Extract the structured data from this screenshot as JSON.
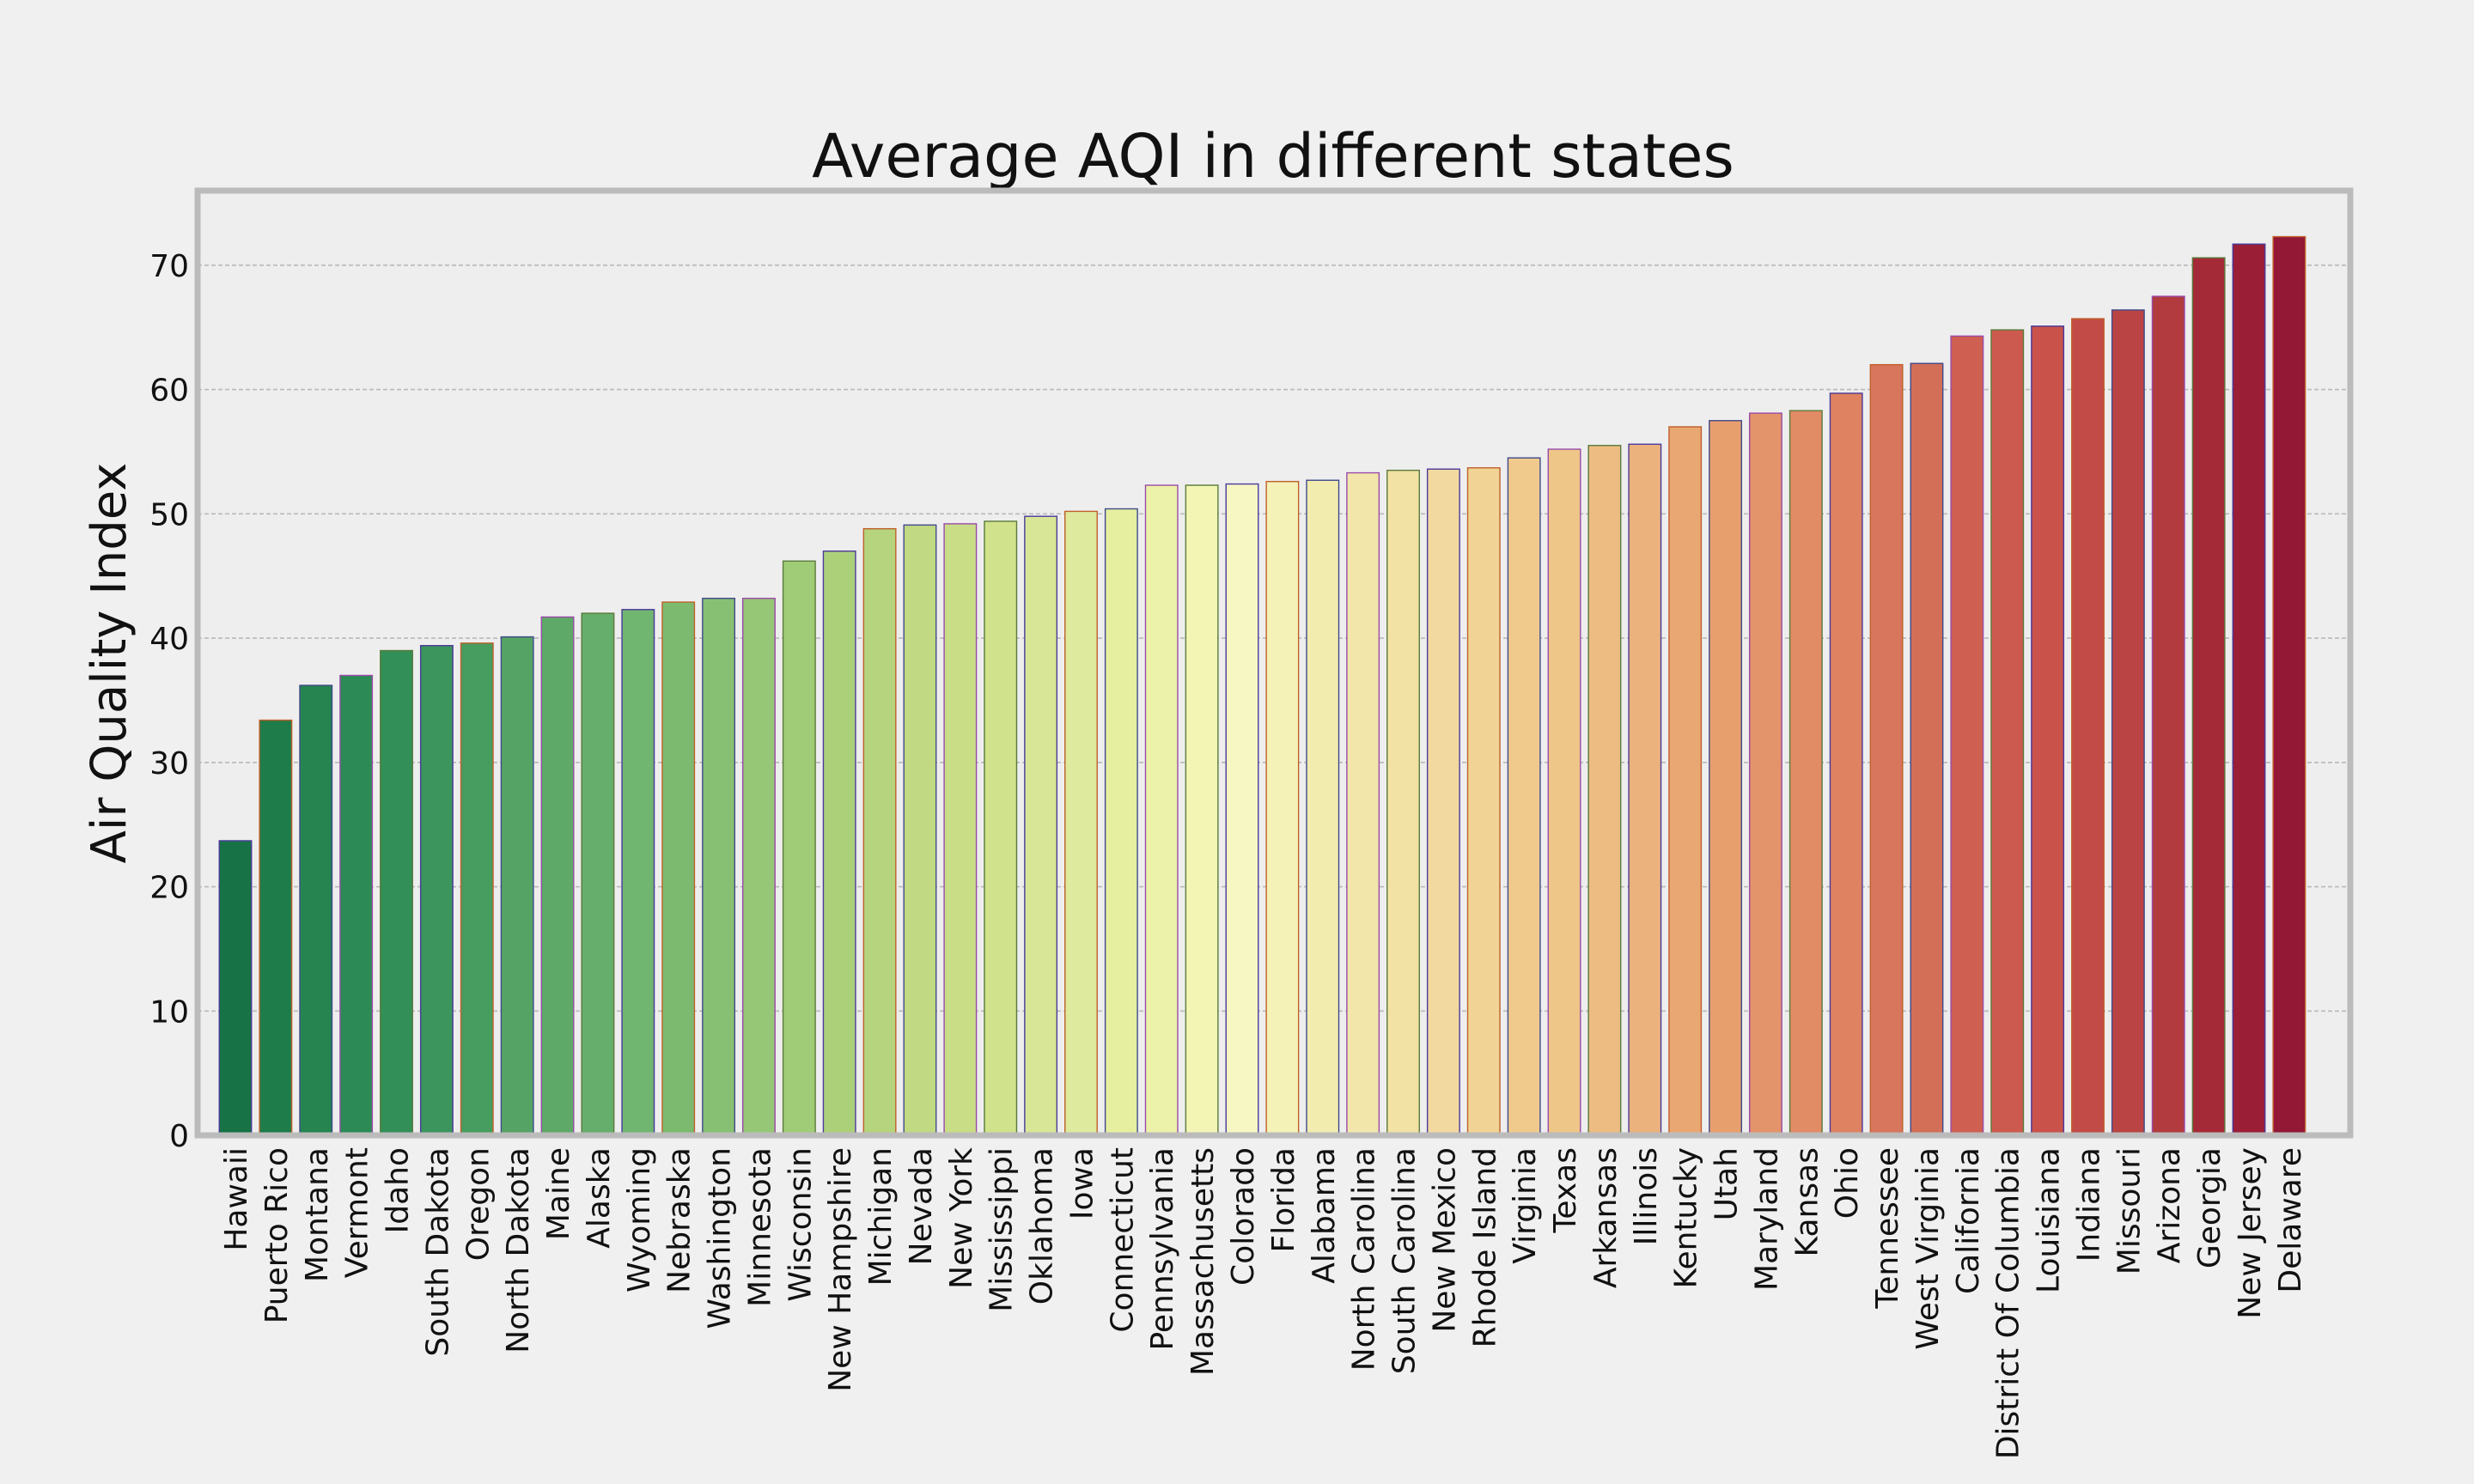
{
  "chart_data": {
    "type": "bar",
    "title": "Average AQI in different states",
    "xlabel": "",
    "ylabel": "Air Quality Index",
    "ylim": [
      0,
      76
    ],
    "yticks": [
      0,
      10,
      20,
      30,
      40,
      50,
      60,
      70
    ],
    "grid": true,
    "colormap": "RdYlGn reversed (green for low values, red for high values)",
    "categories": [
      "Hawaii",
      "Puerto Rico",
      "Montana",
      "Vermont",
      "Idaho",
      "South Dakota",
      "Oregon",
      "North Dakota",
      "Maine",
      "Alaska",
      "Wyoming",
      "Nebraska",
      "Washington",
      "Minnesota",
      "Wisconsin",
      "New Hampshire",
      "Michigan",
      "Nevada",
      "New York",
      "Mississippi",
      "Oklahoma",
      "Iowa",
      "Connecticut",
      "Pennsylvania",
      "Massachusetts",
      "Colorado",
      "Florida",
      "Alabama",
      "North Carolina",
      "South Carolina",
      "New Mexico",
      "Rhode Island",
      "Virginia",
      "Texas",
      "Arkansas",
      "Illinois",
      "Kentucky",
      "Utah",
      "Maryland",
      "Kansas",
      "Ohio",
      "Tennessee",
      "West Virginia",
      "California",
      "District Of Columbia",
      "Louisiana",
      "Indiana",
      "Missouri",
      "Arizona",
      "Georgia",
      "New Jersey",
      "Delaware"
    ],
    "values": [
      23.7,
      33.4,
      36.2,
      37.0,
      39.0,
      39.4,
      39.6,
      40.1,
      41.7,
      42.0,
      42.3,
      42.9,
      43.2,
      43.2,
      46.2,
      47.0,
      48.8,
      49.1,
      49.2,
      49.4,
      49.8,
      50.2,
      50.4,
      52.3,
      52.3,
      52.4,
      52.6,
      52.7,
      53.3,
      53.5,
      53.6,
      53.7,
      54.5,
      55.2,
      55.5,
      55.6,
      57.0,
      57.5,
      58.1,
      58.3,
      59.7,
      62.0,
      62.1,
      64.3,
      64.8,
      65.1,
      65.7,
      66.4,
      67.5,
      70.6,
      71.7,
      72.3
    ],
    "colors": [
      "#177245",
      "#1d7c49",
      "#25844f",
      "#2b8a55",
      "#338f58",
      "#3c955d",
      "#479d5f",
      "#55a365",
      "#5ea967",
      "#66ae6b",
      "#70b570",
      "#7bba6f",
      "#88c073",
      "#96c776",
      "#a0cb77",
      "#acd07a",
      "#b5d47d",
      "#c1d982",
      "#c8dd86",
      "#d1e28c",
      "#d7e697",
      "#deea9e",
      "#e5ef9f",
      "#ecf2a9",
      "#f2f5b4",
      "#f6f7c2",
      "#f5f2b7",
      "#f3ecaf",
      "#f2e6aa",
      "#f2e2a4",
      "#f2d99f",
      "#f1d495",
      "#f0ca8d",
      "#eec688",
      "#edbc83",
      "#ebb27d",
      "#e9a773",
      "#e79f6e",
      "#e4946a",
      "#e18c65",
      "#de8262",
      "#d7765c",
      "#d36e57",
      "#cf6051",
      "#cd5a4e",
      "#c9524b",
      "#c24b47",
      "#ba4443",
      "#b23b3f",
      "#a52a38",
      "#9b1e37",
      "#921836"
    ]
  }
}
